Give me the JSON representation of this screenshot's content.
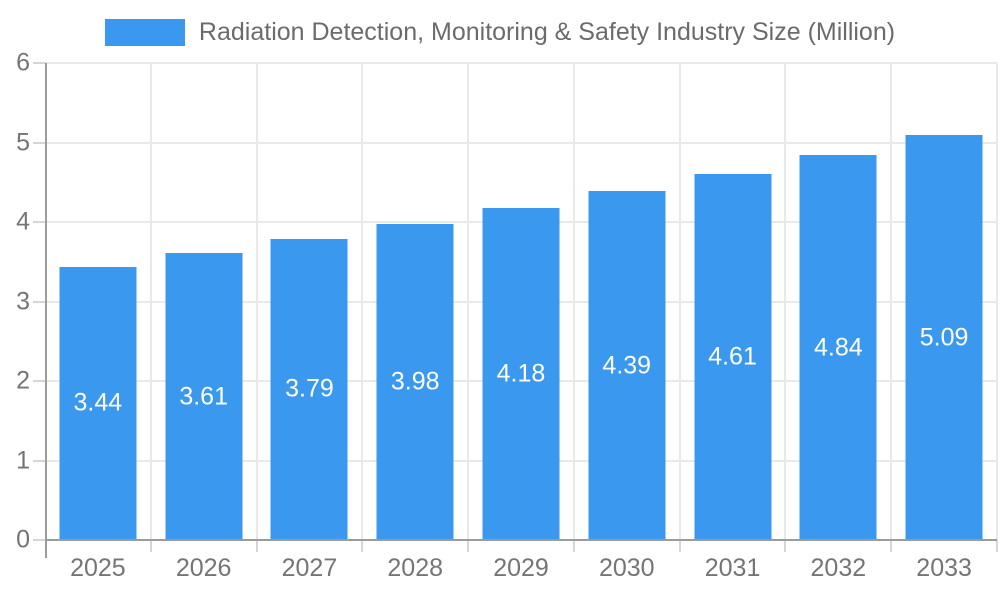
{
  "legend": {
    "label": "Radiation Detection, Monitoring & Safety Industry Size (Million)"
  },
  "colors": {
    "bar": "#3a99ee",
    "grid": "#e9e9e9",
    "axis_line": "#9b9b9b",
    "tick": "#d6d6d6",
    "axis_text": "#757575",
    "legend_text": "#6b6b6b",
    "value_text": "#ffffff",
    "background": "#ffffff"
  },
  "chart_data": {
    "type": "bar",
    "title": "",
    "xlabel": "",
    "ylabel": "",
    "categories": [
      "2025",
      "2026",
      "2027",
      "2028",
      "2029",
      "2030",
      "2031",
      "2032",
      "2033"
    ],
    "series": [
      {
        "name": "Radiation Detection, Monitoring & Safety Industry Size (Million)",
        "color": "#3a99ee",
        "values": [
          3.44,
          3.61,
          3.79,
          3.98,
          4.18,
          4.39,
          4.61,
          4.84,
          5.09
        ]
      }
    ],
    "value_labels": [
      "3.44",
      "3.61",
      "3.79",
      "3.98",
      "4.18",
      "4.39",
      "4.61",
      "4.84",
      "5.09"
    ],
    "ylim": [
      0,
      6
    ],
    "yticks": [
      "0",
      "1",
      "2",
      "3",
      "4",
      "5",
      "6"
    ],
    "grid": true,
    "legend_position": "top",
    "value_label_position": "inside-center"
  }
}
